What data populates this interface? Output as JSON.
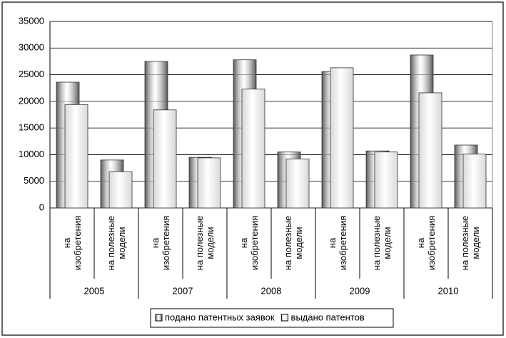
{
  "chart_data": {
    "type": "bar",
    "groups": [
      "2005",
      "2007",
      "2008",
      "2009",
      "2010"
    ],
    "categories": [
      "на изобретения",
      "на полезные модели",
      "на изобретения",
      "на полезные модели",
      "на изобретения",
      "на полезные модели",
      "на изобретения",
      "на полезные модели",
      "на изобретения",
      "на полезные модели"
    ],
    "series": [
      {
        "name": "подано патентных заявок",
        "color": "#555555",
        "values": [
          23600,
          9000,
          27500,
          9500,
          27800,
          10500,
          25600,
          10700,
          28700,
          11800
        ]
      },
      {
        "name": "выдано патентов",
        "color": "#d9d9d9",
        "values": [
          19400,
          6800,
          18400,
          9400,
          22300,
          9200,
          26300,
          10500,
          21600,
          10100
        ]
      }
    ],
    "ylim": [
      0,
      35000
    ],
    "yticks": [
      0,
      5000,
      10000,
      15000,
      20000,
      25000,
      30000,
      35000
    ],
    "grid": true,
    "legend": "bottom"
  }
}
